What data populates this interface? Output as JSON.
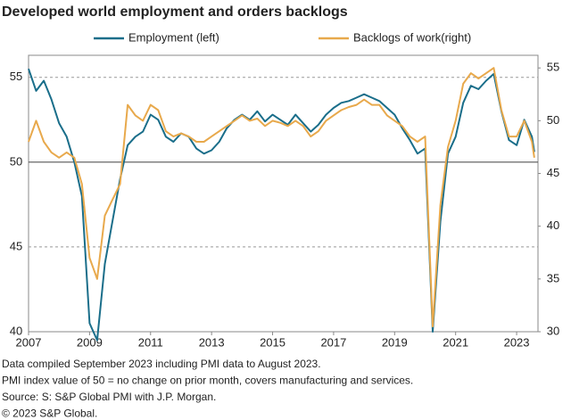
{
  "chart_data": {
    "type": "line",
    "title": "Developed world employment and orders backlogs",
    "x": [
      2007,
      2007.25,
      2007.5,
      2007.75,
      2008,
      2008.25,
      2008.5,
      2008.75,
      2009,
      2009.25,
      2009.5,
      2009.75,
      2010,
      2010.25,
      2010.5,
      2010.75,
      2011,
      2011.25,
      2011.5,
      2011.75,
      2012,
      2012.25,
      2012.5,
      2012.75,
      2013,
      2013.25,
      2013.5,
      2013.75,
      2014,
      2014.25,
      2014.5,
      2014.75,
      2015,
      2015.25,
      2015.5,
      2015.75,
      2016,
      2016.25,
      2016.5,
      2016.75,
      2017,
      2017.25,
      2017.5,
      2017.75,
      2018,
      2018.25,
      2018.5,
      2018.75,
      2019,
      2019.25,
      2019.5,
      2019.75,
      2020,
      2020.25,
      2020.5,
      2020.75,
      2021,
      2021.25,
      2021.5,
      2021.75,
      2022,
      2022.25,
      2022.5,
      2022.75,
      2023,
      2023.25,
      2023.5,
      2023.58
    ],
    "series": [
      {
        "name": "Employment (left)",
        "color": "#1a6e8a",
        "values": [
          55.5,
          54.2,
          54.8,
          53.7,
          52.3,
          51.5,
          50.0,
          48.0,
          40.5,
          39.5,
          44.0,
          46.5,
          49.0,
          51.0,
          51.5,
          51.8,
          52.8,
          52.5,
          51.5,
          51.2,
          51.7,
          51.5,
          50.8,
          50.5,
          50.7,
          51.2,
          52.0,
          52.5,
          52.8,
          52.5,
          53.0,
          52.4,
          52.8,
          52.5,
          52.2,
          52.8,
          52.3,
          51.8,
          52.2,
          52.8,
          53.2,
          53.5,
          53.6,
          53.8,
          54.0,
          53.8,
          53.6,
          53.2,
          52.8,
          52.0,
          51.3,
          50.5,
          50.8,
          40.0,
          46.5,
          50.5,
          51.5,
          53.5,
          54.5,
          54.3,
          54.8,
          55.2,
          53.0,
          51.3,
          51.0,
          52.5,
          51.5,
          50.6
        ]
      },
      {
        "name": "Backlogs of work(right)",
        "color": "#e8a94c",
        "axis": "y2",
        "values": [
          48,
          50,
          48,
          47,
          46.5,
          47,
          46.5,
          44,
          37,
          35,
          41,
          42.5,
          44,
          51.5,
          50.5,
          50,
          51.5,
          51,
          49,
          48.5,
          48.8,
          48.5,
          48,
          48,
          48.5,
          49,
          49.5,
          50,
          50.5,
          50,
          50.2,
          49.5,
          50,
          49.8,
          49.5,
          50,
          49.5,
          48.5,
          49,
          50,
          50.5,
          51,
          51.3,
          51.5,
          52,
          51.5,
          51.5,
          50.5,
          50,
          49.5,
          48.5,
          48,
          48.5,
          30.5,
          42,
          47.5,
          50,
          53.5,
          54.5,
          54,
          54.5,
          55,
          51,
          48.5,
          48.5,
          50,
          48,
          46.5
        ]
      }
    ],
    "xlim": [
      2007,
      2023.7
    ],
    "xticks": [
      2007,
      2009,
      2011,
      2013,
      2015,
      2017,
      2019,
      2021,
      2023
    ],
    "ylim": [
      40,
      56.3
    ],
    "yticks": [
      40,
      45,
      50,
      55
    ],
    "y2lim": [
      30,
      56.2
    ],
    "y2ticks": [
      30,
      35,
      40,
      45,
      50,
      55
    ],
    "grid": true,
    "reference_line": 50,
    "legend": "top",
    "footnotes": [
      "Data compiled September 2023 including PMI data to August 2023.",
      "PMI index value of 50 = no change on prior month, covers manufacturing and services.",
      "Source: S: S&P Global PMI with J.P. Morgan.",
      "© 2023 S&P Global."
    ]
  }
}
